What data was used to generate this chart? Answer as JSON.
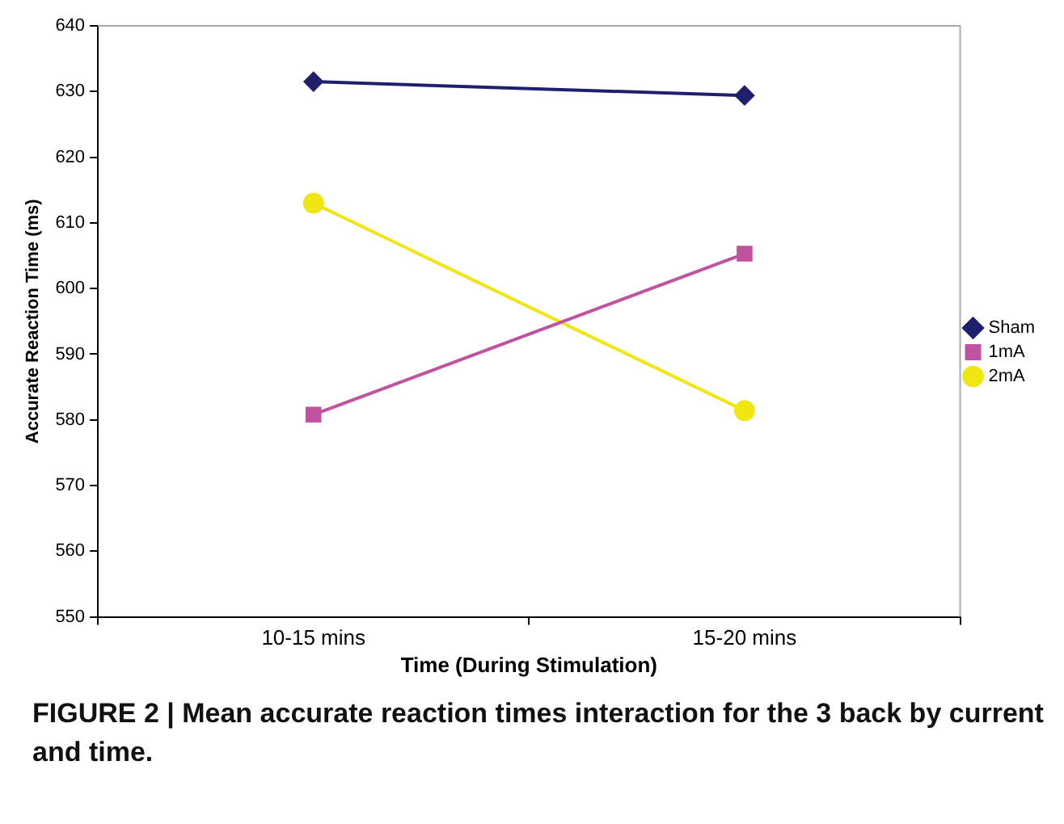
{
  "chart_data": {
    "type": "line",
    "xlabel": "Time (During Stimulation)",
    "ylabel": "Accurate Reaction Time (ms)",
    "categories": [
      "10-15 mins",
      "15-20 mins"
    ],
    "series": [
      {
        "name": "Sham",
        "color": "#1f1f6e",
        "values": [
          631.5,
          629.4
        ],
        "marker": "diamond"
      },
      {
        "name": "1mA",
        "color": "#c052a0",
        "values": [
          580.8,
          605.3
        ],
        "marker": "square"
      },
      {
        "name": "2mA",
        "color": "#f0e614",
        "values": [
          613.0,
          581.4
        ],
        "marker": "circle"
      }
    ],
    "ylim": [
      550,
      640
    ],
    "yticks": [
      550,
      560,
      570,
      580,
      590,
      600,
      610,
      620,
      630,
      640
    ],
    "grid": false,
    "legend": "right",
    "annotations": [
      "FIGURE 2 | Mean accurate reaction times interaction for the 3 back by current and time."
    ]
  }
}
